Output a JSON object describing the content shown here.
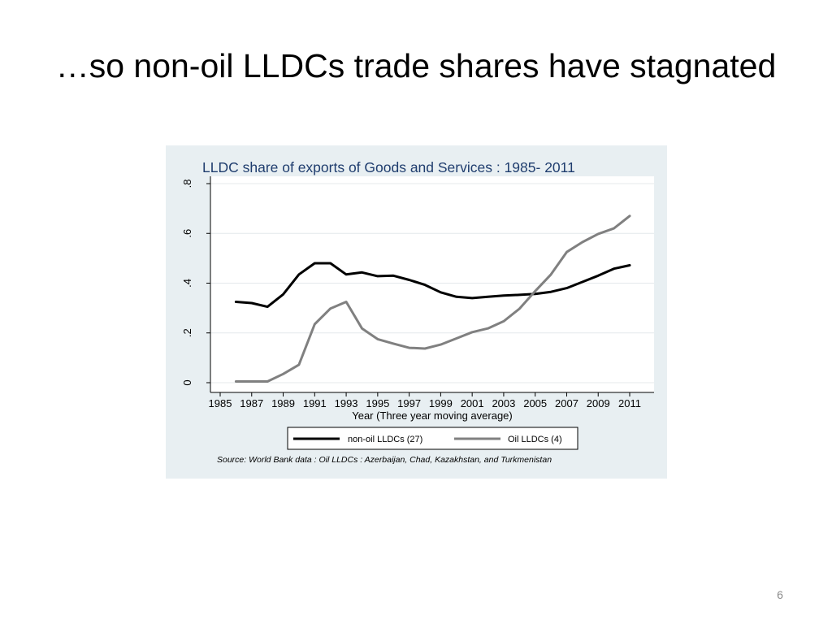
{
  "slide": {
    "title": "…so non-oil LLDCs trade shares have stagnated",
    "page_number": "6"
  },
  "colors": {
    "panel_background": "#e8eff2",
    "plot_background": "#ffffff",
    "title_color": "#1f3d6e",
    "non_oil_series": "#000000",
    "oil_series": "#808080"
  },
  "chart_data": {
    "type": "line",
    "title": "LLDC share of exports of Goods and Services : 1985- 2011",
    "xlabel": "Year (Three year moving average)",
    "ylabel": "",
    "xlim": [
      1985,
      2011
    ],
    "ylim": [
      0,
      0.8
    ],
    "x_ticks": [
      1985,
      1987,
      1989,
      1991,
      1993,
      1995,
      1997,
      1999,
      2001,
      2003,
      2005,
      2007,
      2009,
      2011
    ],
    "x_tick_labels": [
      "1985",
      "1987",
      "1989",
      "1991",
      "1993",
      "1995",
      "1997",
      "1999",
      "2001",
      "2003",
      "2005",
      "2007",
      "2009",
      "2011"
    ],
    "y_ticks": [
      0,
      0.2,
      0.4,
      0.6,
      0.8
    ],
    "y_tick_labels": [
      "0",
      ".2",
      ".4",
      ".6",
      ".8"
    ],
    "grid": true,
    "legend_position": "bottom",
    "source_note": "Source: World Bank data : Oil LLDCs : Azerbaijan, Chad, Kazakhstan, and Turkmenistan",
    "x": [
      1986,
      1987,
      1988,
      1989,
      1990,
      1991,
      1992,
      1993,
      1994,
      1995,
      1996,
      1997,
      1998,
      1999,
      2000,
      2001,
      2002,
      2003,
      2004,
      2005,
      2006,
      2007,
      2008,
      2009,
      2010,
      2011
    ],
    "series": [
      {
        "name": "non-oil LLDCs (27)",
        "color": "#000000",
        "values": [
          0.325,
          0.32,
          0.305,
          0.355,
          0.435,
          0.48,
          0.48,
          0.435,
          0.443,
          0.428,
          0.43,
          0.413,
          0.393,
          0.363,
          0.345,
          0.34,
          0.345,
          0.35,
          0.353,
          0.357,
          0.365,
          0.38,
          0.405,
          0.43,
          0.458,
          0.472
        ]
      },
      {
        "name": "Oil LLDCs (4)",
        "color": "#808080",
        "values": [
          0.005,
          0.005,
          0.005,
          0.035,
          0.072,
          0.235,
          0.298,
          0.325,
          0.218,
          0.175,
          0.157,
          0.14,
          0.137,
          0.153,
          0.178,
          0.203,
          0.218,
          0.247,
          0.297,
          0.368,
          0.435,
          0.525,
          0.565,
          0.598,
          0.62,
          0.67
        ]
      }
    ]
  }
}
